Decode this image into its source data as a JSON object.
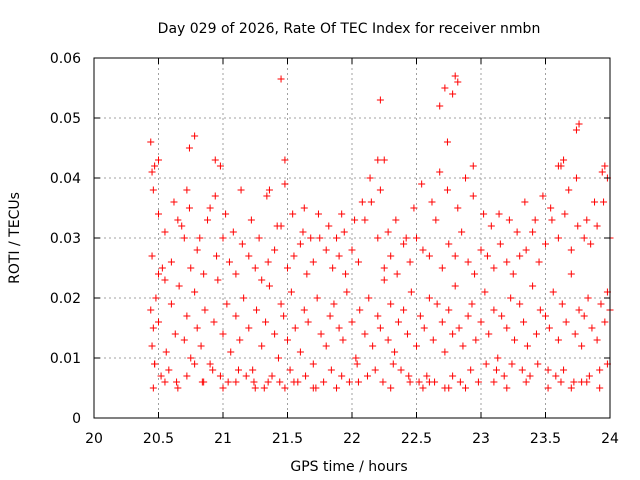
{
  "chart_data": {
    "type": "scatter",
    "title": "Day 029 of 2026, Rate Of TEC Index for receiver nmbn",
    "xlabel": "GPS time / hours",
    "ylabel": "ROTI / TECUs",
    "xlim": [
      20,
      24
    ],
    "ylim": [
      0,
      0.06
    ],
    "xticks": [
      20,
      20.5,
      21,
      21.5,
      22,
      22.5,
      23,
      23.5,
      24
    ],
    "xtick_labels": [
      "20",
      "20.5",
      "21",
      "21.5",
      "22",
      "22.5",
      "23",
      "23.5",
      "24"
    ],
    "yticks": [
      0,
      0.01,
      0.02,
      0.03,
      0.04,
      0.05,
      0.06
    ],
    "ytick_labels": [
      "0",
      "0.01",
      "0.02",
      "0.03",
      "0.04",
      "0.05",
      "0.06"
    ],
    "grid": true,
    "marker": "+",
    "color": "#ff0000",
    "series": [
      {
        "name": "ROTI",
        "x": [
          20.44,
          20.45,
          20.46,
          20.47,
          20.48,
          20.5,
          20.53,
          20.56,
          20.6,
          20.63,
          20.66,
          20.7,
          20.72,
          20.75,
          20.78,
          20.8,
          20.83,
          20.86,
          20.9,
          20.93,
          20.96,
          21.0,
          21.03,
          21.06,
          21.1,
          21.13,
          21.16,
          21.2,
          21.23,
          21.26,
          21.3,
          21.33,
          21.36,
          21.4,
          21.43,
          21.45,
          21.47,
          21.5,
          21.53,
          21.56,
          21.6,
          21.63,
          21.66,
          21.7,
          21.73,
          21.76,
          21.8,
          21.83,
          21.86,
          21.9,
          21.93,
          21.96,
          22.0,
          22.03,
          22.06,
          22.1,
          22.13,
          22.16,
          22.2,
          22.22,
          22.25,
          22.28,
          22.3,
          22.33,
          22.36,
          22.4,
          22.43,
          22.46,
          22.5,
          22.53,
          22.56,
          22.6,
          22.63,
          22.66,
          22.7,
          22.72,
          22.75,
          22.78,
          22.8,
          22.83,
          22.86,
          22.9,
          22.93,
          22.96,
          23.0,
          23.03,
          23.06,
          23.1,
          23.13,
          23.16,
          23.2,
          23.23,
          23.26,
          23.3,
          23.33,
          23.36,
          23.4,
          23.43,
          23.46,
          23.5,
          23.53,
          23.56,
          23.6,
          23.63,
          23.66,
          23.7,
          23.73,
          23.76,
          23.78,
          23.8,
          23.83,
          23.86,
          23.9,
          23.93,
          23.96,
          23.98,
          24.0,
          20.45,
          20.5,
          20.55,
          20.6,
          20.65,
          20.7,
          20.75,
          20.8,
          20.85,
          20.9,
          20.95,
          21.0,
          21.05,
          21.1,
          21.15,
          21.2,
          21.25,
          21.3,
          21.35,
          21.4,
          21.45,
          21.5,
          21.55,
          21.6,
          21.65,
          21.7,
          21.75,
          21.8,
          21.85,
          21.9,
          21.95,
          22.0,
          22.05,
          22.1,
          22.15,
          22.2,
          22.25,
          22.3,
          22.35,
          22.4,
          22.45,
          22.5,
          22.55,
          22.6,
          22.65,
          22.7,
          22.75,
          22.8,
          22.85,
          22.9,
          22.95,
          23.0,
          23.05,
          23.1,
          23.15,
          23.2,
          23.25,
          23.3,
          23.35,
          23.4,
          23.45,
          23.5,
          23.55,
          23.6,
          23.65,
          23.7,
          23.75,
          23.8,
          23.85,
          23.9,
          23.95,
          24.0,
          20.47,
          20.52,
          20.58,
          20.64,
          20.72,
          20.78,
          20.84,
          20.92,
          20.98,
          21.04,
          21.12,
          21.18,
          21.24,
          21.32,
          21.38,
          21.44,
          21.52,
          21.58,
          21.64,
          21.72,
          21.78,
          21.84,
          21.92,
          21.98,
          22.04,
          22.12,
          22.18,
          22.24,
          22.32,
          22.38,
          22.44,
          22.52,
          22.58,
          22.64,
          22.72,
          22.78,
          22.84,
          22.92,
          22.98,
          23.04,
          23.12,
          23.18,
          23.24,
          23.32,
          23.38,
          23.44,
          23.52,
          23.58,
          23.64,
          23.72,
          23.78,
          23.84,
          23.92,
          23.98,
          20.46,
          20.5,
          20.55,
          20.62,
          20.68,
          20.74,
          20.82,
          20.88,
          20.94,
          21.02,
          21.08,
          21.14,
          21.22,
          21.28,
          21.34,
          21.42,
          21.48,
          21.54,
          21.62,
          21.68,
          21.74,
          21.82,
          21.88,
          21.94,
          22.02,
          22.08,
          22.14,
          22.22,
          22.28,
          22.34,
          22.42,
          22.48,
          22.54,
          22.62,
          22.68,
          22.74,
          22.82,
          22.88,
          22.94,
          23.02,
          23.08,
          23.14,
          23.22,
          23.28,
          23.34,
          23.42,
          23.48,
          23.54,
          23.62,
          23.68,
          23.74,
          23.82,
          23.88,
          23.94,
          20.44,
          20.45,
          20.47,
          20.5,
          20.72,
          20.74,
          20.78,
          20.94,
          20.98,
          21.36,
          21.45,
          21.48,
          21.63,
          21.92,
          22.2,
          22.22,
          22.25,
          22.68,
          22.72,
          22.74,
          22.78,
          22.8,
          22.82,
          22.94,
          23.6,
          23.64,
          23.74,
          23.76,
          23.96,
          23.98,
          20.46,
          20.55,
          20.65,
          20.85,
          21.0,
          21.1,
          21.25,
          21.35,
          21.48,
          21.55,
          21.7,
          21.88,
          22.05,
          22.3,
          22.45,
          22.55,
          22.6,
          22.75,
          22.88,
          23.1,
          23.2,
          23.35,
          23.52,
          23.62,
          23.7,
          23.82,
          23.92
        ],
        "y": [
          0.018,
          0.012,
          0.015,
          0.009,
          0.02,
          0.016,
          0.025,
          0.011,
          0.019,
          0.014,
          0.022,
          0.013,
          0.017,
          0.01,
          0.021,
          0.015,
          0.012,
          0.018,
          0.009,
          0.016,
          0.023,
          0.014,
          0.019,
          0.011,
          0.017,
          0.013,
          0.02,
          0.015,
          0.008,
          0.018,
          0.012,
          0.016,
          0.022,
          0.014,
          0.01,
          0.019,
          0.017,
          0.013,
          0.021,
          0.015,
          0.011,
          0.018,
          0.016,
          0.009,
          0.02,
          0.014,
          0.012,
          0.017,
          0.019,
          0.015,
          0.013,
          0.021,
          0.016,
          0.01,
          0.018,
          0.014,
          0.02,
          0.012,
          0.017,
          0.015,
          0.023,
          0.013,
          0.019,
          0.011,
          0.016,
          0.018,
          0.014,
          0.021,
          0.012,
          0.017,
          0.015,
          0.02,
          0.013,
          0.019,
          0.016,
          0.011,
          0.018,
          0.014,
          0.022,
          0.015,
          0.012,
          0.017,
          0.019,
          0.013,
          0.016,
          0.021,
          0.014,
          0.018,
          0.01,
          0.017,
          0.015,
          0.02,
          0.013,
          0.019,
          0.016,
          0.012,
          0.022,
          0.014,
          0.018,
          0.017,
          0.015,
          0.021,
          0.013,
          0.019,
          0.016,
          0.024,
          0.014,
          0.018,
          0.012,
          0.017,
          0.02,
          0.015,
          0.013,
          0.019,
          0.016,
          0.021,
          0.018,
          0.027,
          0.024,
          0.023,
          0.026,
          0.033,
          0.03,
          0.025,
          0.028,
          0.024,
          0.035,
          0.027,
          0.03,
          0.026,
          0.024,
          0.029,
          0.027,
          0.025,
          0.023,
          0.026,
          0.028,
          0.032,
          0.025,
          0.027,
          0.029,
          0.024,
          0.026,
          0.03,
          0.028,
          0.025,
          0.027,
          0.024,
          0.028,
          0.026,
          0.033,
          0.036,
          0.03,
          0.025,
          0.027,
          0.024,
          0.029,
          0.026,
          0.03,
          0.028,
          0.027,
          0.033,
          0.025,
          0.029,
          0.027,
          0.031,
          0.026,
          0.024,
          0.028,
          0.027,
          0.025,
          0.029,
          0.026,
          0.024,
          0.027,
          0.028,
          0.031,
          0.026,
          0.029,
          0.033,
          0.03,
          0.034,
          0.028,
          0.032,
          0.03,
          0.029,
          0.032,
          0.036,
          0.03,
          0.009,
          0.007,
          0.008,
          0.006,
          0.007,
          0.009,
          0.006,
          0.008,
          0.007,
          0.006,
          0.008,
          0.007,
          0.006,
          0.005,
          0.007,
          0.006,
          0.008,
          0.006,
          0.007,
          0.005,
          0.006,
          0.008,
          0.007,
          0.006,
          0.009,
          0.007,
          0.008,
          0.006,
          0.009,
          0.008,
          0.007,
          0.006,
          0.007,
          0.006,
          0.005,
          0.007,
          0.006,
          0.008,
          0.006,
          0.009,
          0.008,
          0.007,
          0.009,
          0.008,
          0.007,
          0.009,
          0.008,
          0.007,
          0.008,
          0.006,
          0.006,
          0.007,
          0.008,
          0.009,
          0.038,
          0.034,
          0.031,
          0.036,
          0.032,
          0.035,
          0.03,
          0.033,
          0.037,
          0.034,
          0.031,
          0.038,
          0.033,
          0.03,
          0.037,
          0.032,
          0.039,
          0.034,
          0.031,
          0.03,
          0.034,
          0.032,
          0.03,
          0.031,
          0.033,
          0.036,
          0.04,
          0.038,
          0.031,
          0.033,
          0.03,
          0.035,
          0.039,
          0.036,
          0.041,
          0.038,
          0.035,
          0.04,
          0.037,
          0.034,
          0.032,
          0.034,
          0.033,
          0.031,
          0.036,
          0.033,
          0.037,
          0.035,
          0.042,
          0.038,
          0.04,
          0.033,
          0.036,
          0.041,
          0.046,
          0.041,
          0.042,
          0.043,
          0.038,
          0.045,
          0.047,
          0.043,
          0.042,
          0.038,
          0.0565,
          0.043,
          0.035,
          0.034,
          0.043,
          0.053,
          0.043,
          0.052,
          0.055,
          0.046,
          0.054,
          0.057,
          0.056,
          0.042,
          0.042,
          0.043,
          0.048,
          0.049,
          0.042,
          0.04,
          0.005,
          0.006,
          0.005,
          0.006,
          0.005,
          0.006,
          0.005,
          0.006,
          0.005,
          0.006,
          0.005,
          0.005,
          0.006,
          0.005,
          0.006,
          0.005,
          0.006,
          0.005,
          0.005,
          0.006,
          0.005,
          0.006,
          0.005,
          0.006,
          0.005,
          0.006,
          0.005
        ]
      }
    ]
  }
}
